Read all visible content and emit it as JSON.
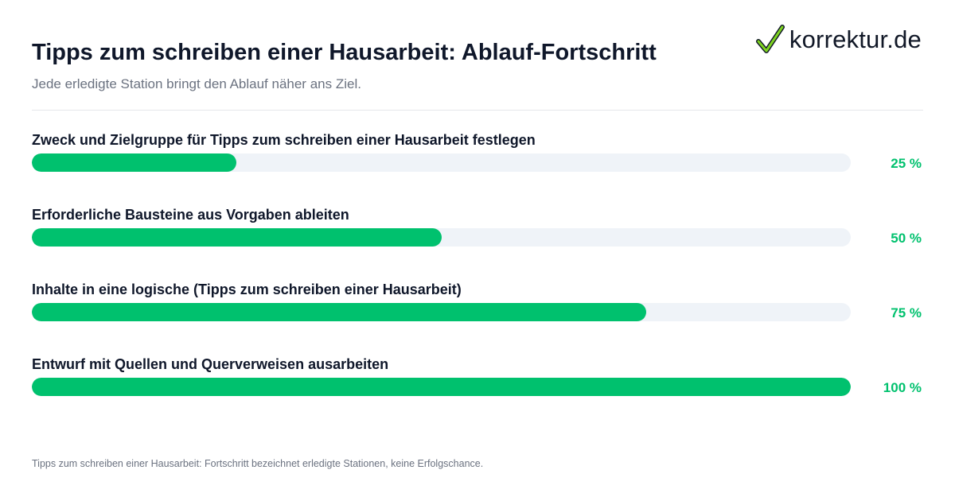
{
  "header": {
    "title": "Tipps zum schreiben einer Hausarbeit: Ablauf-Fortschritt",
    "subtitle": "Jede erledigte Station bringt den Ablauf näher ans Ziel."
  },
  "logo": {
    "text": "korrektur.de",
    "icon": "checkmark-icon"
  },
  "footnote": "Tipps zum schreiben einer Hausarbeit: Fortschritt bezeichnet erledigte Stationen, keine Erfolgschance.",
  "colors": {
    "accent": "#00c16e",
    "track": "#eff3f8",
    "text": "#0f172a",
    "muted": "#6b7280"
  },
  "chart_data": {
    "type": "bar",
    "orientation": "horizontal",
    "categories": [
      "Zweck und Zielgruppe für Tipps zum schreiben einer Hausarbeit festlegen",
      "Erforderliche Bausteine aus Vorgaben ableiten",
      "Inhalte in eine logische (Tipps zum schreiben einer Hausarbeit)",
      "Entwurf mit Quellen und Querverweisen ausarbeiten"
    ],
    "values": [
      25,
      50,
      75,
      100
    ],
    "value_labels": [
      "25 %",
      "50 %",
      "75 %",
      "100 %"
    ],
    "xlim": [
      0,
      100
    ],
    "unit": "%",
    "grid": false
  }
}
